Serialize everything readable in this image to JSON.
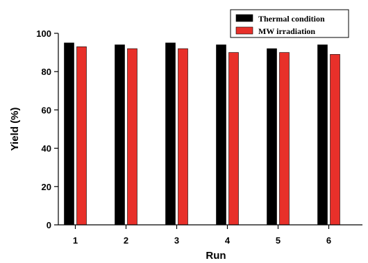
{
  "chart_data": {
    "type": "bar",
    "title": "",
    "xlabel": "Run",
    "ylabel": "Yield (%)",
    "categories": [
      "1",
      "2",
      "3",
      "4",
      "5",
      "6"
    ],
    "series": [
      {
        "name": "Thermal condition",
        "values": [
          95,
          94,
          95,
          94,
          92,
          94
        ],
        "color": "#000000"
      },
      {
        "name": "MW irradiation",
        "values": [
          93,
          92,
          92,
          90,
          90,
          89
        ],
        "color": "#e8302a"
      }
    ],
    "ylim": [
      0,
      100
    ],
    "yticks": [
      0,
      20,
      40,
      60,
      80,
      100
    ],
    "grid": false,
    "legend": "top-right"
  }
}
